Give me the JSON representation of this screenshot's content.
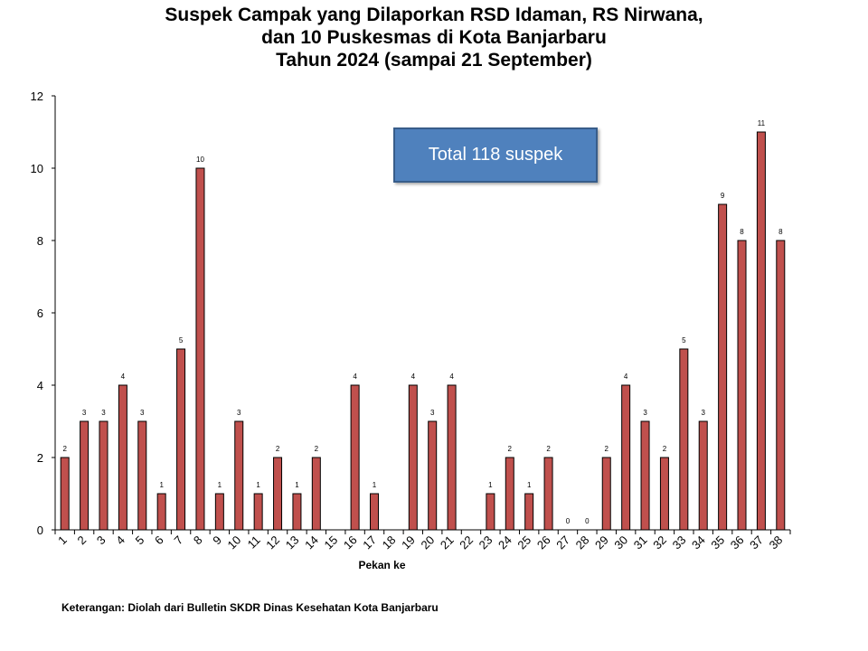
{
  "chart_data": {
    "type": "bar",
    "title_lines": [
      "Suspek Campak yang Dilaporkan RSD Idaman, RS Nirwana,",
      "dan 10 Puskesmas di Kota Banjarbaru",
      "Tahun 2024 (sampai 21 September)"
    ],
    "xlabel": "Pekan ke",
    "ylabel": "",
    "ylim": [
      0,
      12
    ],
    "yticks": [
      0,
      2,
      4,
      6,
      8,
      10,
      12
    ],
    "categories": [
      "1",
      "2",
      "3",
      "4",
      "5",
      "6",
      "7",
      "8",
      "9",
      "10",
      "11",
      "12",
      "13",
      "14",
      "15",
      "16",
      "17",
      "18",
      "19",
      "20",
      "21",
      "22",
      "23",
      "24",
      "25",
      "26",
      "27",
      "28",
      "29",
      "30",
      "31",
      "32",
      "33",
      "34",
      "35",
      "36",
      "37",
      "38"
    ],
    "values": [
      2,
      3,
      3,
      4,
      3,
      1,
      5,
      10,
      1,
      3,
      1,
      2,
      1,
      2,
      null,
      4,
      1,
      null,
      4,
      3,
      4,
      null,
      1,
      2,
      1,
      2,
      0,
      0,
      2,
      4,
      3,
      2,
      5,
      3,
      9,
      8,
      11,
      8
    ],
    "bar_color": "#c0504d",
    "bar_edge": "#000000",
    "grid": false,
    "legend": "none"
  },
  "annotation": {
    "total_label": "Total 118 suspek",
    "box_color": "#4f81bd"
  },
  "footer_note": "Keterangan: Diolah dari Bulletin SKDR Dinas Kesehatan Kota Banjarbaru"
}
